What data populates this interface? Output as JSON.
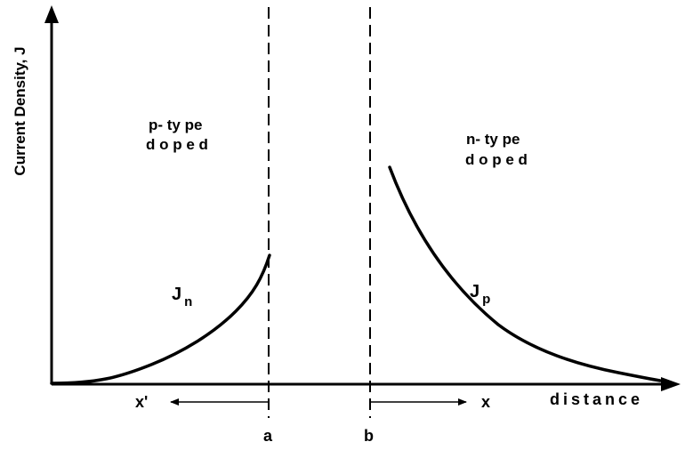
{
  "axes": {
    "y_label": "Current Density, J",
    "x_label": "distance"
  },
  "regions": {
    "p_line1": "p- ty pe",
    "p_line2": "d o p e d",
    "n_line1": "n- ty pe",
    "n_line2": "d o p e d"
  },
  "curves": {
    "jn_main": "J",
    "jn_sub": "n",
    "jp_main": "J",
    "jp_sub": "p"
  },
  "boundaries": {
    "a": "a",
    "b": "b"
  },
  "directions": {
    "x_prime": "x'",
    "x": "x"
  }
}
